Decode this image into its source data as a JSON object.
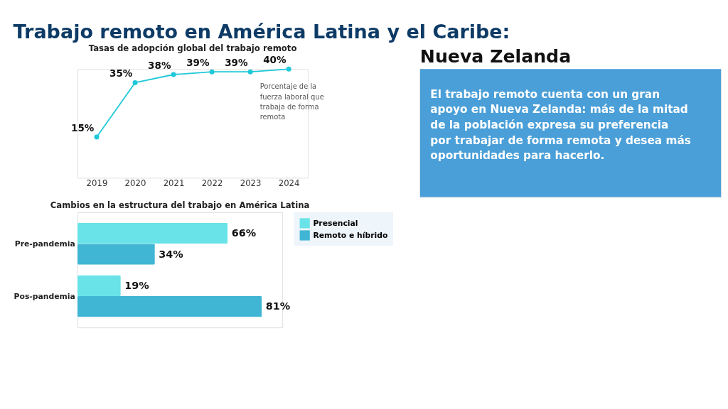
{
  "chart_data": [
    {
      "type": "line",
      "title": "Tasas de adopción global del trabajo remoto",
      "categories": [
        "2019",
        "2020",
        "2021",
        "2022",
        "2023",
        "2024"
      ],
      "series": [
        {
          "color": "#1ec8d8",
          "values": [
            15,
            35,
            38,
            39,
            39,
            40
          ],
          "value_labels": [
            "15%",
            "35%",
            "38%",
            "39%",
            "39%",
            "40%"
          ]
        }
      ],
      "marker": "circle",
      "grid": false,
      "legend": false,
      "annotations": [
        "Porcentaje de la fuerza laboral que trabaja de forma remota"
      ]
    },
    {
      "type": "bar",
      "orientation": "horizontal",
      "title": "Cambios en la estructura del trabajo en América Latina",
      "categories": [
        "Pre-pandemia",
        "Pos-pandemia"
      ],
      "series": [
        {
          "name": "Presencial",
          "color": "#6ae3e8",
          "values": [
            66,
            19
          ],
          "value_labels": [
            "66%",
            "19%"
          ]
        },
        {
          "name": "Remoto e híbrido",
          "color": "#40b6d4",
          "values": [
            34,
            81
          ],
          "value_labels": [
            "34%",
            "81%"
          ]
        }
      ],
      "legend": "right"
    },
    {
      "type": "other",
      "title": "Trabajo remoto en América Latina y el Caribe:",
      "subtitle": "Nueva Zelanda",
      "annotations": [
        "El trabajo remoto cuenta con un gran apoyo en Nueva Zelanda: más de la mitad de la población expresa su preferencia por trabajar de forma remota y desea más oportunidades para hacerlo."
      ]
    }
  ]
}
